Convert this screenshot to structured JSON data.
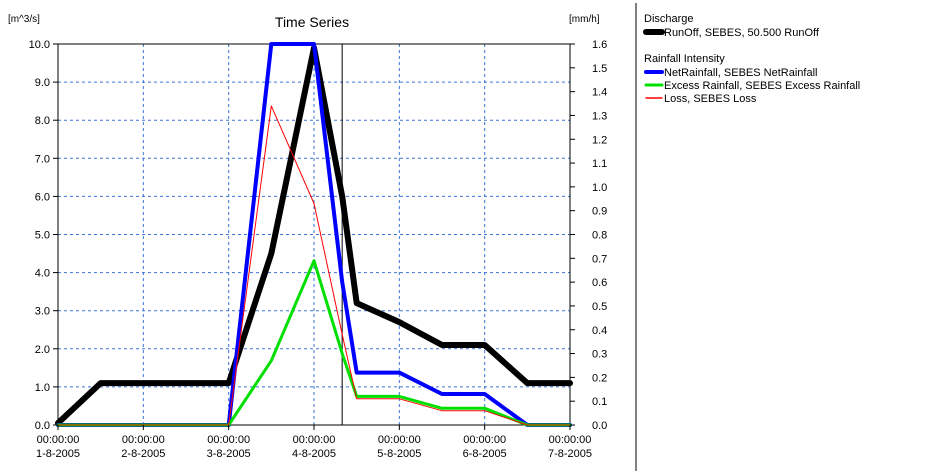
{
  "chart_data": {
    "type": "line",
    "title": "Time Series",
    "y_left_unit": "[m^3/s]",
    "y_right_unit": "[mm/h]",
    "y_left_range": [
      0,
      10
    ],
    "y_right_range": [
      0,
      1.6
    ],
    "grid": true,
    "x_ticks": [
      {
        "time": "00:00:00",
        "date": "1-8-2005"
      },
      {
        "time": "00:00:00",
        "date": "2-8-2005"
      },
      {
        "time": "00:00:00",
        "date": "3-8-2005"
      },
      {
        "time": "00:00:00",
        "date": "4-8-2005"
      },
      {
        "time": "00:00:00",
        "date": "5-8-2005"
      },
      {
        "time": "00:00:00",
        "date": "6-8-2005"
      },
      {
        "time": "00:00:00",
        "date": "7-8-2005"
      }
    ],
    "y_left_ticks": [
      "0.0",
      "1.0",
      "2.0",
      "3.0",
      "4.0",
      "5.0",
      "6.0",
      "7.0",
      "8.0",
      "9.0",
      "10.0"
    ],
    "y_right_ticks": [
      "0.0",
      "0.1",
      "0.2",
      "0.3",
      "0.4",
      "0.5",
      "0.6",
      "0.7",
      "0.8",
      "0.9",
      "1.0",
      "1.1",
      "1.2",
      "1.3",
      "1.4",
      "1.5",
      "1.6"
    ],
    "current_time_marker_day": 3.33,
    "legend_groups": [
      {
        "heading": "Discharge",
        "entries": [
          "RunOff, SEBES, 50.500 RunOff"
        ]
      },
      {
        "heading": "Rainfall Intensity",
        "entries": [
          "NetRainfall, SEBES NetRainfall",
          "Excess Rainfall, SEBES Excess Rainfall",
          "Loss, SEBES Loss"
        ]
      }
    ],
    "series": [
      {
        "axis": "left",
        "color": "#000000",
        "width": 6,
        "x": [
          0,
          0.5,
          2.0,
          2.5,
          3.0,
          3.33,
          3.5,
          4.0,
          4.5,
          5.0,
          5.5,
          6.0
        ],
        "y": [
          0.05,
          1.1,
          1.1,
          4.5,
          9.9,
          6.0,
          3.2,
          2.7,
          2.1,
          2.1,
          1.1,
          1.1
        ]
      },
      {
        "axis": "right",
        "color": "#0000ff",
        "width": 4,
        "x": [
          0,
          2.0,
          2.5,
          3.0,
          3.33,
          3.5,
          4.0,
          4.5,
          5.0,
          5.5,
          6.0
        ],
        "y": [
          0.0,
          0.0,
          1.6,
          1.6,
          0.6,
          0.22,
          0.22,
          0.13,
          0.13,
          0.0,
          0.0
        ]
      },
      {
        "axis": "right",
        "color": "#00e000",
        "width": 3,
        "x": [
          0,
          2.0,
          2.5,
          3.0,
          3.33,
          3.5,
          4.0,
          4.5,
          5.0,
          5.5,
          6.0
        ],
        "y": [
          0.0,
          0.0,
          0.27,
          0.69,
          0.3,
          0.12,
          0.12,
          0.07,
          0.07,
          0.0,
          0.0
        ]
      },
      {
        "axis": "right",
        "color": "#ff0000",
        "width": 1,
        "x": [
          0,
          2.0,
          2.5,
          3.0,
          3.33,
          3.5,
          4.0,
          4.5,
          5.0,
          5.5,
          6.0
        ],
        "y": [
          0.0,
          0.0,
          1.34,
          0.93,
          0.38,
          0.11,
          0.11,
          0.06,
          0.06,
          0.0,
          0.0
        ]
      }
    ]
  }
}
